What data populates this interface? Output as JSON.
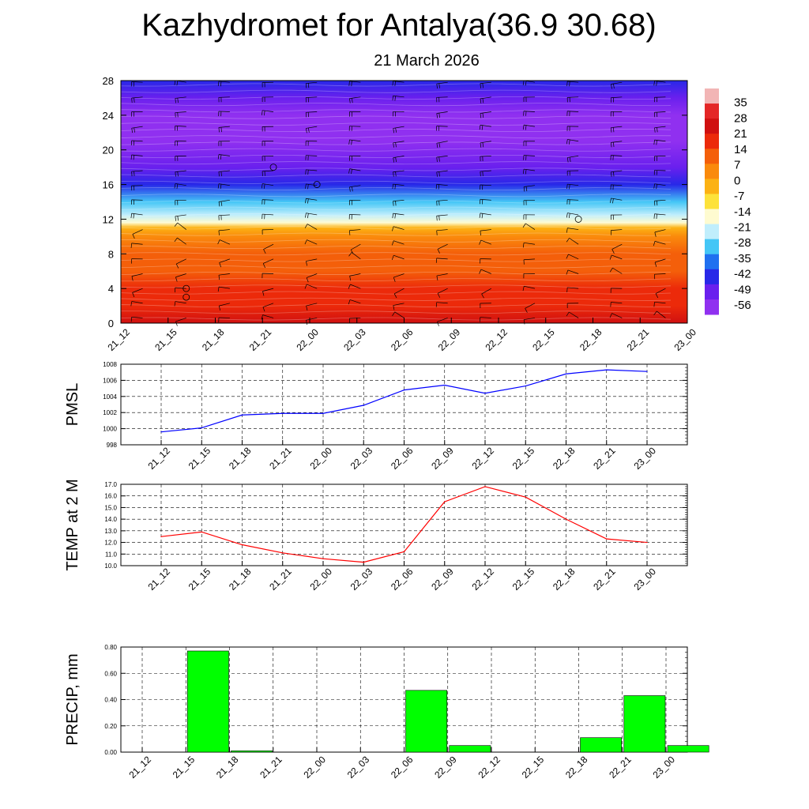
{
  "header": {
    "title": "Kazhydromet for Antalya(36.9 30.68)",
    "date": "21 March 2026"
  },
  "time_labels": [
    "21_12",
    "21_15",
    "21_18",
    "21_21",
    "22_00",
    "22_03",
    "22_06",
    "22_09",
    "22_12",
    "22_15",
    "22_18",
    "22_21",
    "23_00"
  ],
  "colorbar": {
    "labels": [
      "35",
      "28",
      "21",
      "14",
      "7",
      "0",
      "-7",
      "-14",
      "-21",
      "-28",
      "-35",
      "-42",
      "-49",
      "-56"
    ],
    "colors": [
      "#f2b5b5",
      "#e42626",
      "#d01010",
      "#ec2a0a",
      "#f45f0a",
      "#fa8a0c",
      "#fcb214",
      "#fde23a",
      "#fefbd0",
      "#c0eefc",
      "#44c6f6",
      "#2070f0",
      "#2828e8",
      "#6a20ee",
      "#9030f0"
    ]
  },
  "chart_data": [
    {
      "type": "heatmap",
      "title": "",
      "xlabel": "",
      "ylabel": "",
      "ylim": [
        0,
        28
      ],
      "yticks": [
        0,
        4,
        8,
        12,
        16,
        20,
        24,
        28
      ],
      "x": [
        "21_12",
        "21_15",
        "21_18",
        "21_21",
        "22_00",
        "22_03",
        "22_06",
        "22_09",
        "22_12",
        "22_15",
        "22_18",
        "22_21",
        "23_00"
      ],
      "color_scale": {
        "min": -56,
        "max": 35
      },
      "temperature_bands": [
        {
          "y": 0,
          "value": 22
        },
        {
          "y": 2,
          "value": 17
        },
        {
          "y": 4,
          "value": 13
        },
        {
          "y": 6,
          "value": 9
        },
        {
          "y": 8,
          "value": 6
        },
        {
          "y": 10,
          "value": 1
        },
        {
          "y": 11,
          "value": -3
        },
        {
          "y": 11.6,
          "value": -14
        },
        {
          "y": 12.5,
          "value": -22
        },
        {
          "y": 14,
          "value": -33
        },
        {
          "y": 16,
          "value": -44
        },
        {
          "y": 18,
          "value": -52
        },
        {
          "y": 21,
          "value": -55
        },
        {
          "y": 24,
          "value": -53
        },
        {
          "y": 26,
          "value": -48
        },
        {
          "y": 28,
          "value": -45
        }
      ],
      "overlay": "wind barbs"
    },
    {
      "type": "line",
      "ylabel": "PMSL",
      "ylim": [
        998,
        1008
      ],
      "yticks": [
        998,
        1000,
        1002,
        1004,
        1006,
        1008
      ],
      "x": [
        "21_12",
        "21_15",
        "21_18",
        "21_21",
        "22_00",
        "22_03",
        "22_06",
        "22_09",
        "22_12",
        "22_15",
        "22_18",
        "22_21",
        "23_00"
      ],
      "series": [
        {
          "values": [
            999.6,
            1000.1,
            1001.7,
            1001.9,
            1001.9,
            1002.9,
            1004.8,
            1005.4,
            1004.4,
            1005.3,
            1006.8,
            1007.3,
            1007.1
          ],
          "color": "#0000ff"
        }
      ],
      "grid": true
    },
    {
      "type": "line",
      "ylabel": "TEMP at 2 M",
      "ylim": [
        10.0,
        17.0
      ],
      "yticks": [
        "10.0",
        "11.0",
        "12.0",
        "13.0",
        "14.0",
        "15.0",
        "16.0",
        "17.0"
      ],
      "x": [
        "21_12",
        "21_15",
        "21_18",
        "21_21",
        "22_00",
        "22_03",
        "22_06",
        "22_09",
        "22_12",
        "22_15",
        "22_18",
        "22_21",
        "23_00"
      ],
      "series": [
        {
          "values": [
            12.5,
            12.9,
            11.8,
            11.1,
            10.6,
            10.3,
            11.2,
            15.5,
            16.8,
            15.9,
            14.0,
            12.3,
            12.0
          ],
          "color": "#ff0000"
        }
      ],
      "grid": true
    },
    {
      "type": "bar",
      "ylabel": "PRECIP, mm",
      "ylim": [
        0,
        0.8
      ],
      "yticks": [
        "0.00",
        "0.20",
        "0.40",
        "0.60",
        "0.80"
      ],
      "categories": [
        "21_12",
        "21_15",
        "21_18",
        "21_21",
        "22_00",
        "22_03",
        "22_06",
        "22_09",
        "22_12",
        "22_15",
        "22_18",
        "22_21",
        "23_00"
      ],
      "values": [
        0,
        0.77,
        0.01,
        0,
        0,
        0,
        0.47,
        0.05,
        0,
        0,
        0.11,
        0.43,
        0.05
      ],
      "color": "#00ff00",
      "grid": true
    }
  ]
}
